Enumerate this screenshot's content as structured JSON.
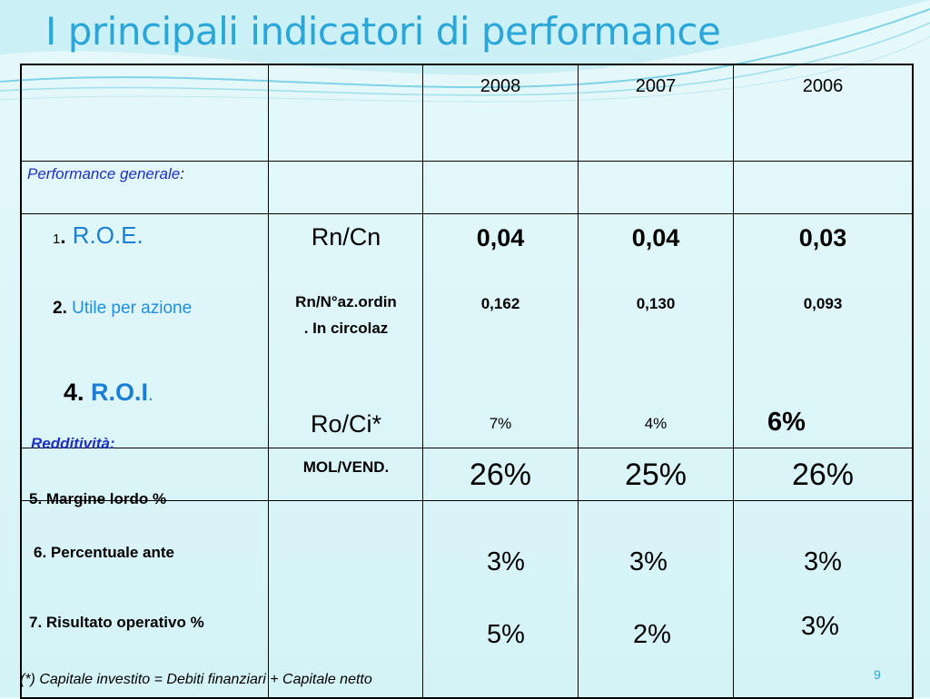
{
  "slide": {
    "title": "I principali indicatori di performance",
    "page_number": "9",
    "footnote": "(*) Capitale investito = Debiti finanziari + Capitale netto"
  },
  "table": {
    "years": [
      "2008",
      "2007",
      "2006"
    ],
    "section_general": "Performance generale",
    "section_general_colon": ":",
    "section_profit": "Redditività:",
    "roe": {
      "num": "1",
      "dot": ".",
      "label": "R.O.E.",
      "formula": "Rn/Cn",
      "values": [
        "0,04",
        "0,04",
        "0,03"
      ]
    },
    "utile": {
      "num": "2.",
      "label": "Utile per azione",
      "formula_line1": "Rn/N°az.ordin",
      "formula_line2": ". In circolaz",
      "values": [
        "0,162",
        "0,130",
        "0,093"
      ]
    },
    "roi": {
      "num": "4.",
      "label": "R.O.I",
      "dot": ".",
      "formula": "Ro/Ci*",
      "values": [
        "7%",
        "4%",
        "6%"
      ]
    },
    "margine": {
      "label": "5. Margine lordo %",
      "formula": "MOL/VEND.",
      "values": [
        "26%",
        "25%",
        "26%"
      ]
    },
    "ante": {
      "label": "6. Percentuale ante",
      "values": [
        "3%",
        "3%",
        "3%"
      ]
    },
    "risultato": {
      "label": "7. Risultato operativo %",
      "values": [
        "5%",
        "2%",
        "3%"
      ]
    }
  }
}
